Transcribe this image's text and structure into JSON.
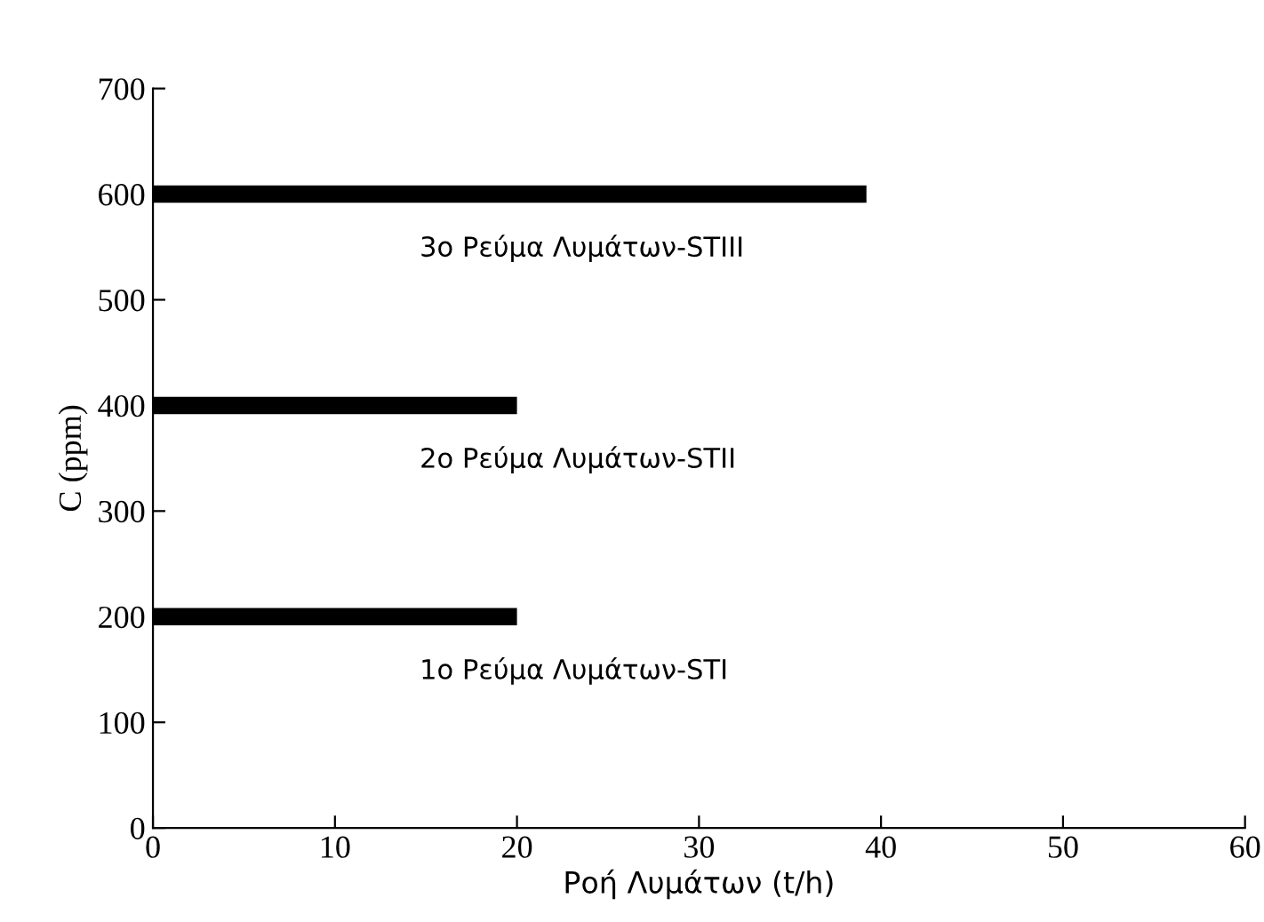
{
  "chart_data": {
    "type": "line",
    "xlabel": "Ροή Λυμάτων (t/h)",
    "ylabel": "C (ppm)",
    "xlim": [
      0,
      60
    ],
    "xticks": [
      0,
      10,
      20,
      30,
      40,
      50,
      60
    ],
    "ylim": [
      0,
      700
    ],
    "yticks": [
      0,
      100,
      200,
      300,
      400,
      500,
      600,
      700
    ],
    "grid": false,
    "marker": "none",
    "line_style": "solid",
    "series": [
      {
        "x": [
          0,
          20
        ],
        "values": [
          200,
          200
        ],
        "color": "#000000"
      },
      {
        "x": [
          0,
          20
        ],
        "values": [
          400,
          400
        ],
        "color": "#000000"
      },
      {
        "x": [
          0,
          39.2
        ],
        "values": [
          600,
          600
        ],
        "color": "#000000"
      }
    ],
    "annotations": [
      "1ο Ρεύμα Λυμάτων-STI",
      "2ο Ρεύμα Λυμάτων-STII",
      "3ο Ρεύμα Λυμάτων-STIII"
    ]
  }
}
